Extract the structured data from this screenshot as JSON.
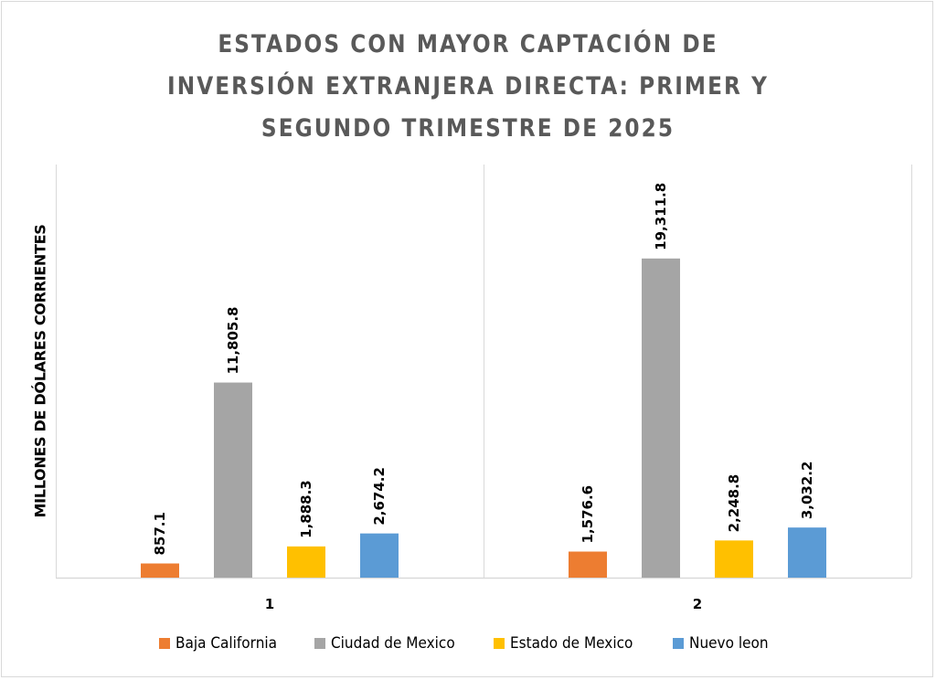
{
  "chart_data": {
    "type": "bar",
    "title": "ESTADOS CON MAYOR CAPTACIÓN DE INVERSIÓN EXTRANJERA DIRECTA: PRIMER Y SEGUNDO TRIMESTRE DE 2025",
    "title_lines": [
      "ESTADOS CON MAYOR CAPTACIÓN DE",
      "INVERSIÓN EXTRANJERA DIRECTA: PRIMER Y",
      "SEGUNDO TRIMESTRE DE 2025"
    ],
    "xlabel": "",
    "ylabel": "MILLONES DE DÓLARES CORRIENTES",
    "categories": [
      "1",
      "2"
    ],
    "ylim": [
      0,
      25000
    ],
    "grid": false,
    "legend_position": "bottom",
    "series": [
      {
        "name": "Baja California",
        "color": "#ED7D31",
        "values": [
          857.1,
          1576.6
        ],
        "labels": [
          "857.1",
          "1,576.6"
        ]
      },
      {
        "name": "Ciudad de Mexico",
        "color": "#A5A5A5",
        "values": [
          11805.8,
          19311.8
        ],
        "labels": [
          "11,805.8",
          "19,311.8"
        ]
      },
      {
        "name": "Estado de Mexico",
        "color": "#FFC000",
        "values": [
          1888.3,
          2248.8
        ],
        "labels": [
          "1,888.3",
          "2,248.8"
        ]
      },
      {
        "name": "Nuevo leon",
        "color": "#5B9BD5",
        "values": [
          2674.2,
          3032.2
        ],
        "labels": [
          "2,674.2",
          "3,032.2"
        ]
      }
    ]
  }
}
